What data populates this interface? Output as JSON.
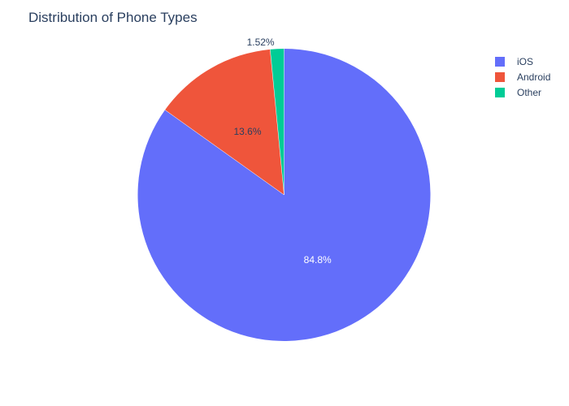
{
  "title": "Distribution of Phone Types",
  "chart_data": {
    "type": "pie",
    "title": "Distribution of Phone Types",
    "labels": [
      "iOS",
      "Android",
      "Other"
    ],
    "values": [
      84.8,
      13.6,
      1.52
    ],
    "text_labels": [
      "84.8%",
      "13.6%",
      "1.52%"
    ],
    "colors": [
      "#636efa",
      "#ef553b",
      "#00cc96"
    ],
    "label_colors": [
      "#ffffff",
      "#2a3f5f",
      "#2a3f5f"
    ],
    "direction": "clockwise",
    "start_angle": "top",
    "legend_position": "top-right"
  },
  "legend": {
    "items": [
      {
        "label": "iOS",
        "color": "#636efa"
      },
      {
        "label": "Android",
        "color": "#ef553b"
      },
      {
        "label": "Other",
        "color": "#00cc96"
      }
    ]
  }
}
